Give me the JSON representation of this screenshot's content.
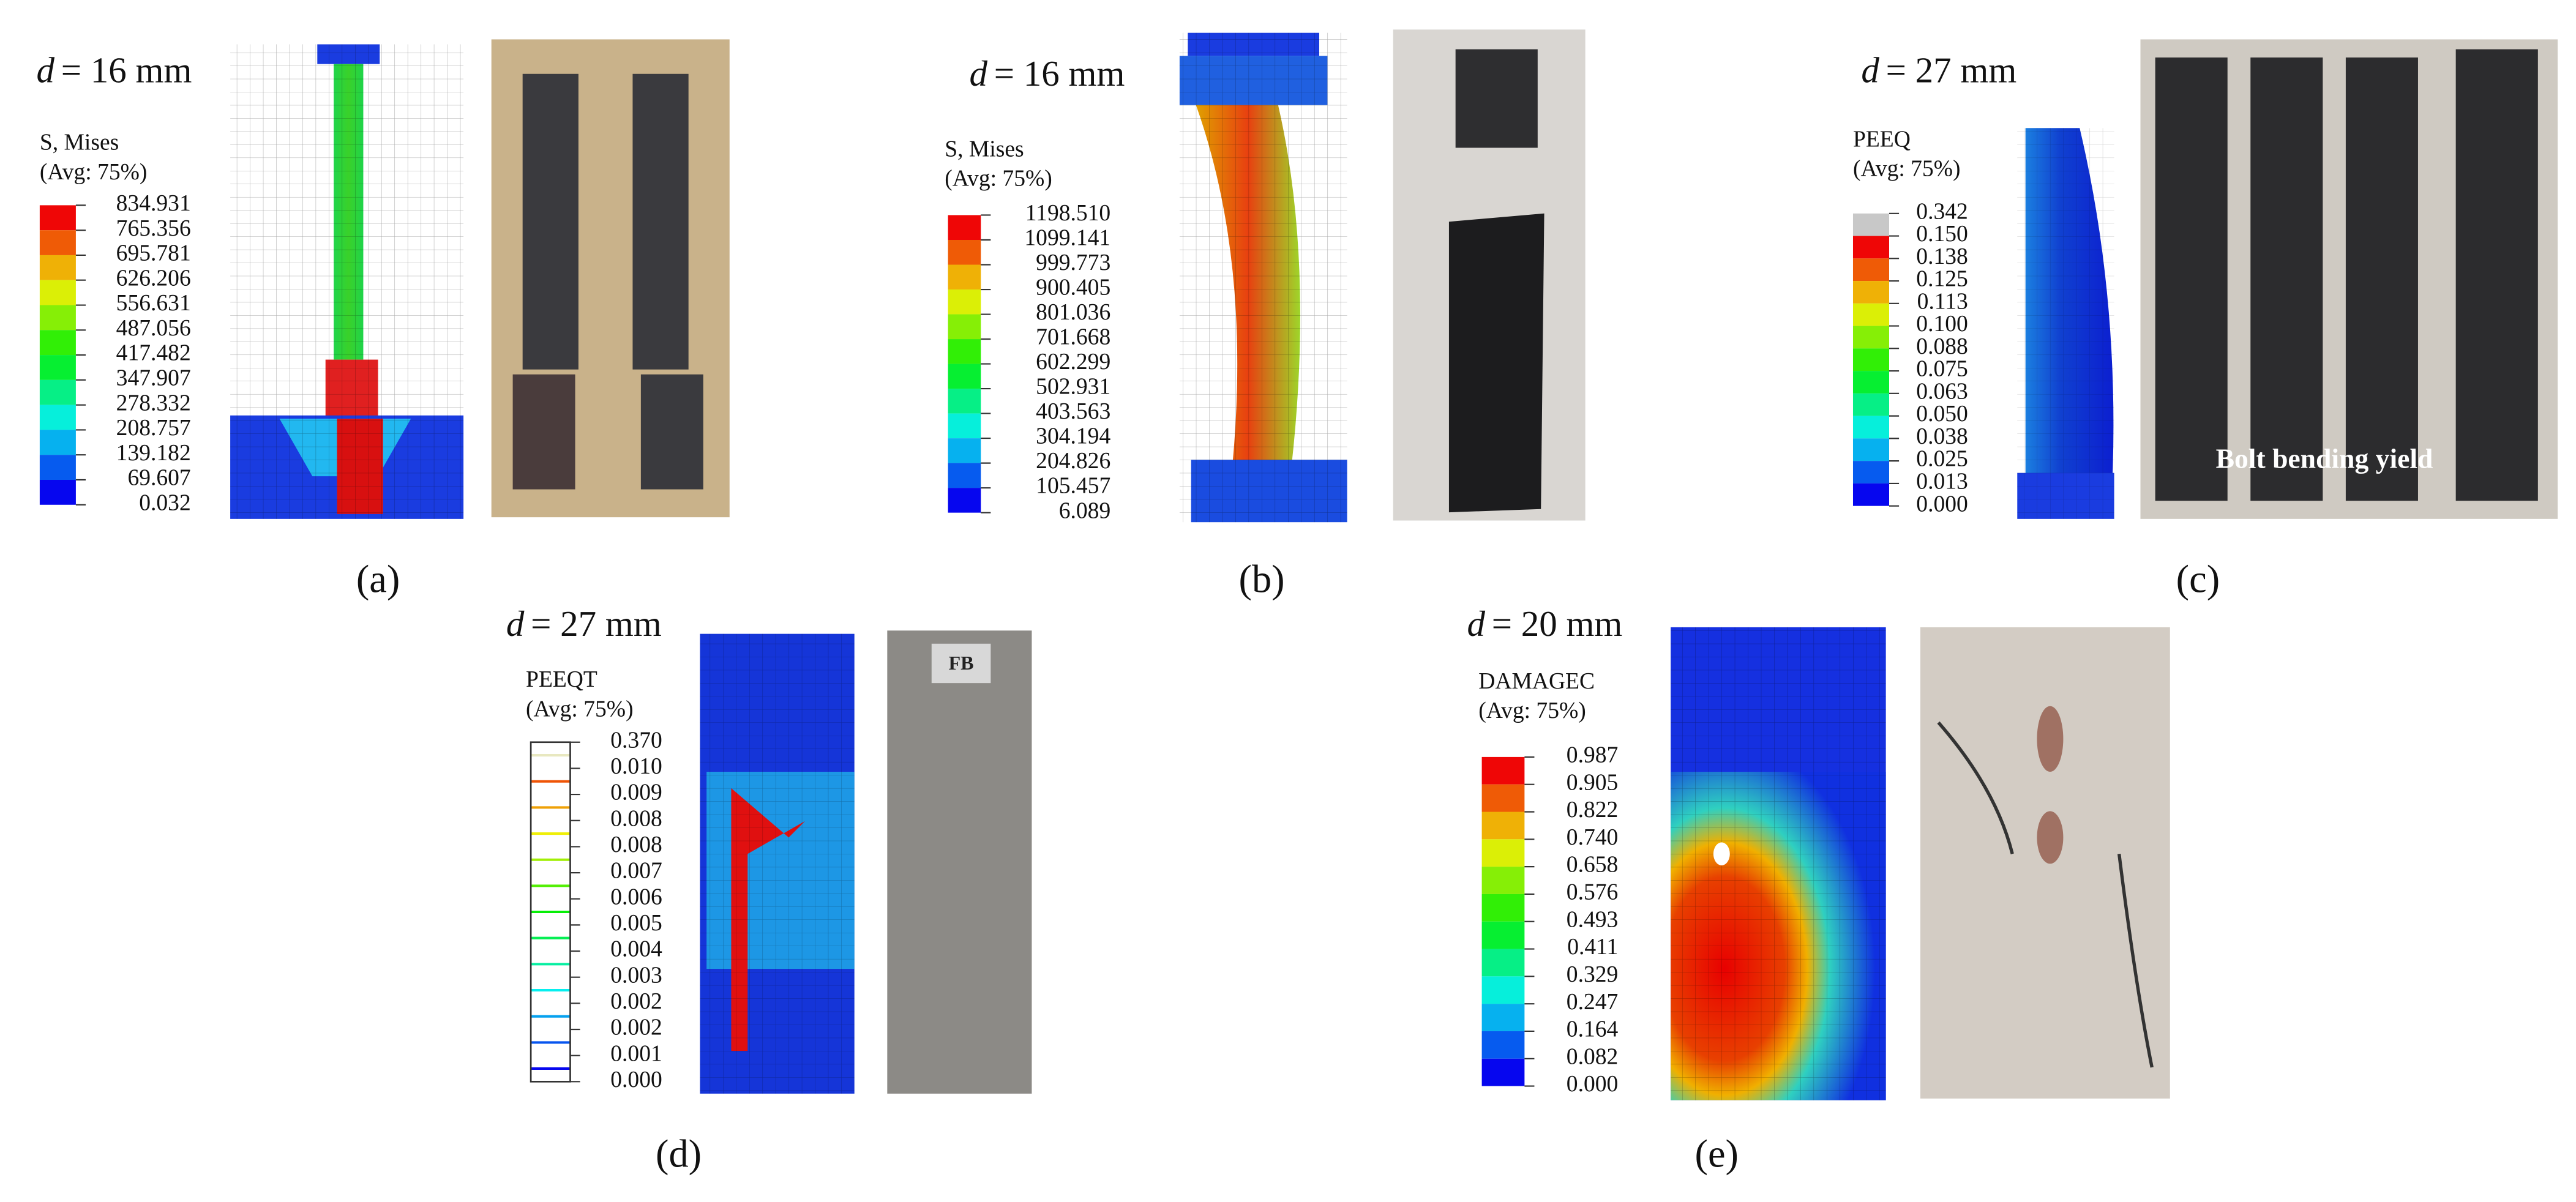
{
  "panels": [
    {
      "label": "(a)",
      "d_symbol": "d",
      "d_value": "= 16 mm",
      "legend": {
        "title": [
          "S, Mises",
          "(Avg: 75%)"
        ],
        "levels": [
          "834.931",
          "765.356",
          "695.781",
          "626.206",
          "556.631",
          "487.056",
          "417.482",
          "347.907",
          "278.332",
          "208.757",
          "139.182",
          "69.607",
          "0.032"
        ]
      }
    },
    {
      "label": "(b)",
      "d_symbol": "d",
      "d_value": "= 16 mm",
      "legend": {
        "title": [
          "S, Mises",
          "(Avg: 75%)"
        ],
        "levels": [
          "1198.510",
          "1099.141",
          "999.773",
          "900.405",
          "801.036",
          "701.668",
          "602.299",
          "502.931",
          "403.563",
          "304.194",
          "204.826",
          "105.457",
          "6.089"
        ]
      }
    },
    {
      "label": "(c)",
      "d_symbol": "d",
      "d_value": "= 27 mm",
      "legend": {
        "title": [
          "PEEQ",
          "(Avg: 75%)"
        ],
        "levels": [
          "0.342",
          "0.150",
          "0.138",
          "0.125",
          "0.113",
          "0.100",
          "0.088",
          "0.075",
          "0.063",
          "0.050",
          "0.038",
          "0.025",
          "0.013",
          "0.000"
        ]
      },
      "photo_text": "Bolt bending yield"
    },
    {
      "label": "(d)",
      "d_symbol": "d",
      "d_value": "= 27 mm",
      "legend": {
        "title": [
          "PEEQT",
          "(Avg: 75%)"
        ],
        "levels": [
          "0.370",
          "0.010",
          "0.009",
          "0.008",
          "0.008",
          "0.007",
          "0.006",
          "0.005",
          "0.004",
          "0.003",
          "0.002",
          "0.002",
          "0.001",
          "0.000"
        ]
      },
      "photo_text": "FB"
    },
    {
      "label": "(e)",
      "d_symbol": "d",
      "d_value": "= 20 mm",
      "legend": {
        "title": [
          "DAMAGEC",
          "(Avg: 75%)"
        ],
        "levels": [
          "0.987",
          "0.905",
          "0.822",
          "0.740",
          "0.658",
          "0.576",
          "0.493",
          "0.411",
          "0.329",
          "0.247",
          "0.164",
          "0.082",
          "0.000"
        ]
      }
    }
  ]
}
